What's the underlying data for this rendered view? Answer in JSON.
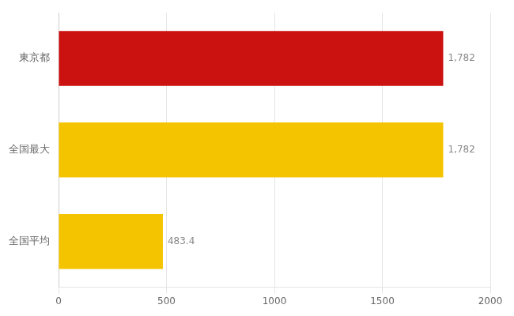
{
  "chart_data": {
    "type": "bar",
    "orientation": "horizontal",
    "categories": [
      "全国平均",
      "全国最大",
      "東京都"
    ],
    "values": [
      483.4,
      1782,
      1782
    ],
    "value_labels": [
      "483.4",
      "1,782",
      "1,782"
    ],
    "data_labels": true,
    "colors": [
      "#F5C400",
      "#F5C400",
      "#CC1111"
    ],
    "xlim": [
      0,
      2000
    ],
    "xticks": [
      0,
      500,
      1000,
      1500,
      2000
    ],
    "grid": true
  }
}
